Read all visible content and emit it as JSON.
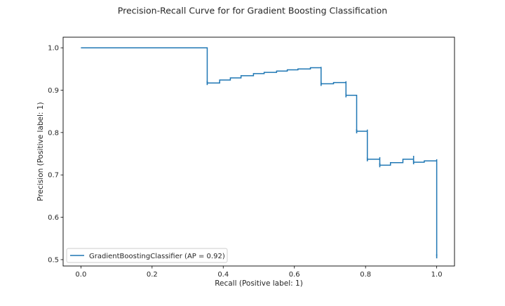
{
  "chart_data": {
    "type": "line",
    "drawstyle": "steps-post",
    "title": "Precision-Recall Curve for for Gradient Boosting Classification",
    "xlabel": "Recall (Positive label: 1)",
    "ylabel": "Precision (Positive label: 1)",
    "xlim": [
      -0.05,
      1.05
    ],
    "ylim": [
      0.485,
      1.025
    ],
    "grid": false,
    "legend_position": "lower-left",
    "xticks": [
      0.0,
      0.2,
      0.4,
      0.6,
      0.8,
      1.0
    ],
    "xtick_labels": [
      "0.0",
      "0.2",
      "0.4",
      "0.6",
      "0.8",
      "1.0"
    ],
    "yticks": [
      0.5,
      0.6,
      0.7,
      0.8,
      0.9,
      1.0
    ],
    "ytick_labels": [
      "0.5",
      "0.6",
      "0.7",
      "0.8",
      "0.9",
      "1.0"
    ],
    "series": [
      {
        "name": "GradientBoostingClassifier (AP = 0.92)",
        "color": "#1f77b4",
        "recall": [
          0.0,
          0.355,
          0.355,
          0.39,
          0.42,
          0.45,
          0.485,
          0.515,
          0.55,
          0.58,
          0.61,
          0.645,
          0.675,
          0.675,
          0.71,
          0.745,
          0.745,
          0.775,
          0.775,
          0.805,
          0.805,
          0.84,
          0.84,
          0.87,
          0.905,
          0.935,
          0.935,
          0.965,
          1.0,
          1.0
        ],
        "precision": [
          1.0,
          1.0,
          0.917,
          0.924,
          0.929,
          0.934,
          0.939,
          0.942,
          0.945,
          0.948,
          0.95,
          0.953,
          0.955,
          0.915,
          0.918,
          0.921,
          0.888,
          0.888,
          0.803,
          0.807,
          0.737,
          0.742,
          0.723,
          0.729,
          0.737,
          0.745,
          0.73,
          0.733,
          0.737,
          0.508
        ]
      }
    ]
  }
}
